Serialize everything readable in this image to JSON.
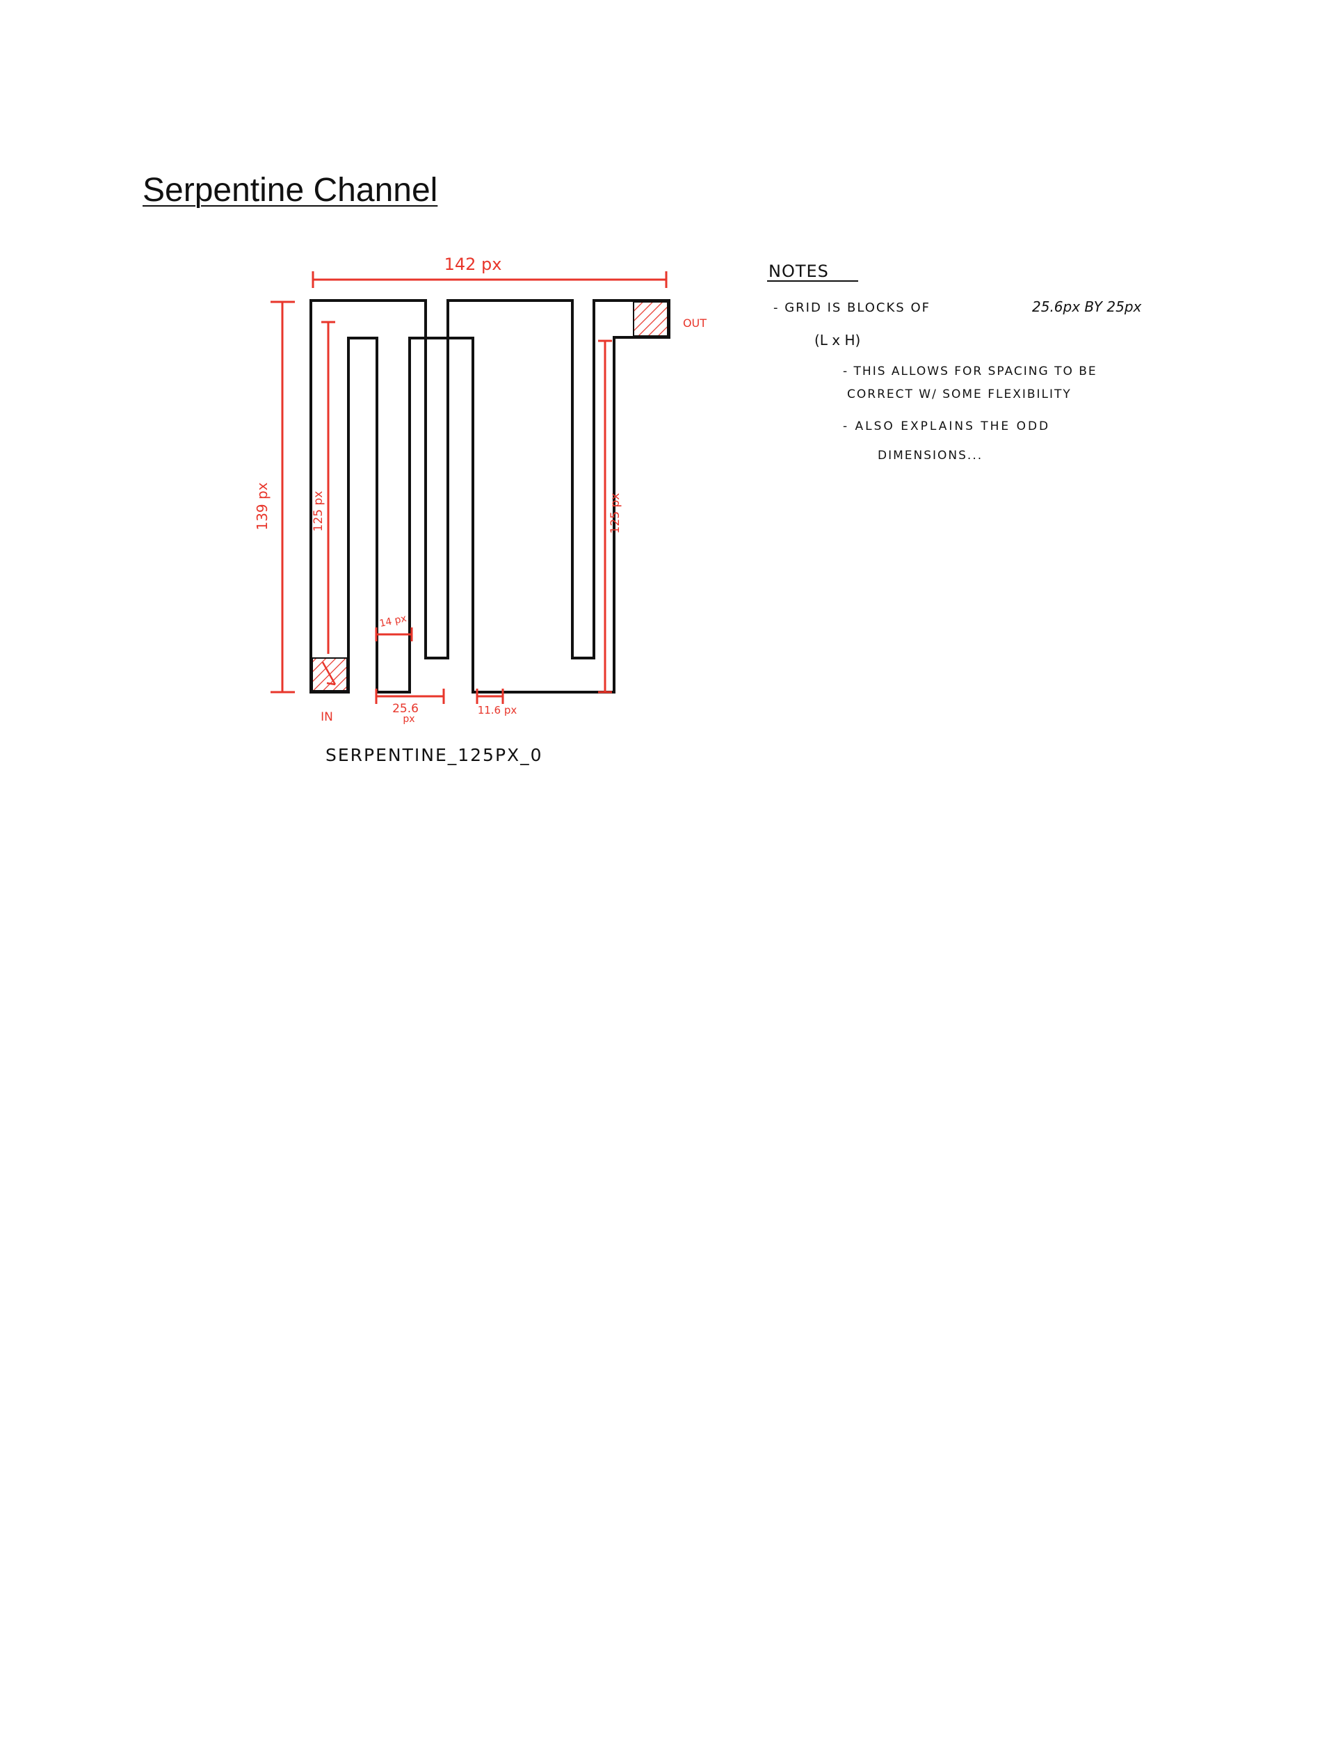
{
  "title": "Serpentine Channel",
  "colors": {
    "annotation": "#e8362b",
    "outline": "#111111",
    "background": "#ffffff"
  },
  "dimensions": {
    "width_top": "142 px",
    "height_left": "139 px",
    "height_inner_left": "125 px",
    "height_inner_right": "125 px",
    "gap": "14 px",
    "block_width_value": "25.6",
    "block_width_unit": "px",
    "wall": "11.6 px"
  },
  "ports": {
    "inlet": "IN",
    "outlet": "OUT"
  },
  "caption": "SERPENTINE_125PX_0",
  "notes": {
    "heading": "NOTES",
    "line1": "- GRID IS BLOCKS OF",
    "line1b": "25.6px BY 25px",
    "line2": "(L x H)",
    "line3": "- THIS ALLOWS FOR SPACING TO BE",
    "line4": "CORRECT W/ SOME FLEXIBILITY",
    "line5": "- ALSO EXPLAINS THE ODD",
    "line6": "DIMENSIONS..."
  }
}
